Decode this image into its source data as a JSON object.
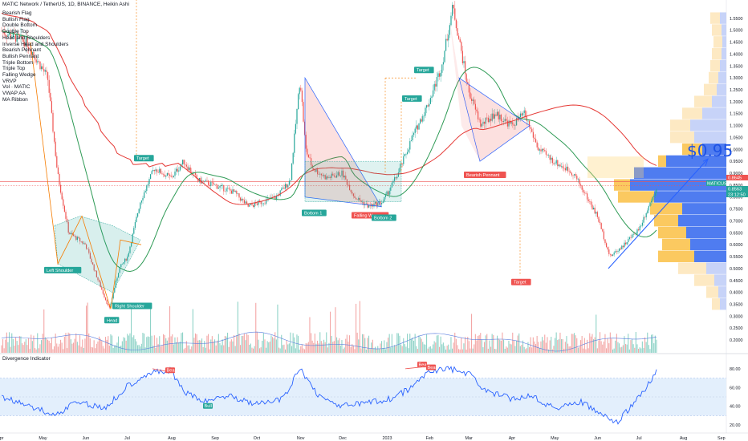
{
  "header": {
    "symbol_line": "MATIC Network / TetherUS, 1D, BINANCE, Heikin Ashi"
  },
  "legend": [
    "Bearish Flag",
    "Bullish Flag",
    "Double Bottom",
    "Double Top",
    "Head and Shoulders",
    "Inverse Head and Shoulders",
    "Bearish Pennant",
    "Bullish Pennant",
    "Triple Bottom",
    "Triple Top",
    "Falling Wedge",
    "VRVP",
    "Vol · MATIC",
    "VWAP AA",
    "MA Ribbon"
  ],
  "indicator": {
    "title": "Divergence Indicator"
  },
  "price_target": "$0.95",
  "colors": {
    "up": "#26a69a",
    "down": "#ef5350",
    "ma_green": "#2e9a55",
    "ma_red": "#e53935",
    "blue": "#2962ff",
    "orange": "#f57c00"
  },
  "chart_data": [
    {
      "type": "line",
      "name": "MATICUSDT price (Heikin Ashi)",
      "x": [
        "2022-04-01",
        "2022-04-20",
        "2022-05-05",
        "2022-05-12",
        "2022-05-20",
        "2022-06-01",
        "2022-06-10",
        "2022-06-18",
        "2022-06-25",
        "2022-07-01",
        "2022-07-10",
        "2022-07-20",
        "2022-08-01",
        "2022-08-10",
        "2022-08-20",
        "2022-09-01",
        "2022-09-15",
        "2022-09-25",
        "2022-10-05",
        "2022-10-15",
        "2022-10-25",
        "2022-11-01",
        "2022-11-05",
        "2022-11-10",
        "2022-11-20",
        "2022-12-01",
        "2022-12-10",
        "2022-12-20",
        "2022-12-30",
        "2023-01-10",
        "2023-01-20",
        "2023-02-01",
        "2023-02-10",
        "2023-02-18",
        "2023-03-01",
        "2023-03-10",
        "2023-03-20",
        "2023-04-01",
        "2023-04-10",
        "2023-04-20",
        "2023-05-01",
        "2023-05-15",
        "2023-06-01",
        "2023-06-10",
        "2023-06-20",
        "2023-07-01",
        "2023-07-14"
      ],
      "y": [
        1.5,
        1.45,
        1.3,
        0.9,
        0.65,
        0.6,
        0.45,
        0.33,
        0.5,
        0.55,
        0.78,
        0.92,
        0.88,
        0.95,
        0.87,
        0.85,
        0.82,
        0.76,
        0.78,
        0.8,
        0.87,
        1.3,
        1.0,
        0.92,
        0.88,
        0.9,
        0.8,
        0.76,
        0.78,
        0.9,
        1.05,
        1.2,
        1.35,
        1.6,
        1.25,
        1.1,
        1.15,
        1.1,
        1.15,
        1.0,
        0.95,
        0.9,
        0.72,
        0.55,
        0.6,
        0.67,
        0.85
      ],
      "axis": {
        "ylim": [
          0.18,
          1.6
        ],
        "yticks": [
          1.55,
          1.5,
          1.45,
          1.4,
          1.35,
          1.3,
          1.25,
          1.2,
          1.15,
          1.1,
          1.05,
          1.0,
          0.95,
          0.9,
          0.85,
          0.8,
          0.75,
          0.7,
          0.65,
          0.6,
          0.55,
          0.5,
          0.45,
          0.4,
          0.35,
          0.3,
          0.25,
          0.2
        ],
        "xticks": [
          "Apr",
          "May",
          "Jun",
          "Jul",
          "Aug",
          "Sep",
          "Oct",
          "Nov",
          "Dec",
          "2023",
          "Feb",
          "Mar",
          "Apr",
          "May",
          "Jun",
          "Jul",
          "Aug",
          "Sep"
        ]
      },
      "price_tags": [
        {
          "value": "0.8645",
          "color": "#ef5350"
        },
        {
          "value": "MATICUSDT",
          "color": "#26a69a"
        },
        {
          "value": "0.8563",
          "color": "#26a69a"
        },
        {
          "value": "23:12:50",
          "color": "#26a69a"
        }
      ],
      "pattern_labels": [
        {
          "text": "Left Shoulder",
          "color": "#26a69a"
        },
        {
          "text": "Head",
          "color": "#26a69a"
        },
        {
          "text": "Right Shoulder",
          "color": "#26a69a"
        },
        {
          "text": "Target",
          "color": "#26a69a"
        },
        {
          "text": "Bottom 1",
          "color": "#26a69a"
        },
        {
          "text": "Falling We...",
          "color": "#ef5350"
        },
        {
          "text": "Bottom 2",
          "color": "#26a69a"
        },
        {
          "text": "Target",
          "color": "#26a69a"
        },
        {
          "text": "Target",
          "color": "#26a69a"
        },
        {
          "text": "Bearish Pennant",
          "color": "#ef5350"
        },
        {
          "text": "Target",
          "color": "#ef5350"
        }
      ]
    },
    {
      "type": "line",
      "name": "Divergence Indicator",
      "axis": {
        "ylim": [
          15,
          85
        ],
        "yticks": [
          80.0,
          60.0,
          40.0,
          20.0
        ]
      },
      "x": [
        "2022-04-01",
        "2022-04-20",
        "2022-05-10",
        "2022-05-25",
        "2022-06-15",
        "2022-07-01",
        "2022-07-15",
        "2022-08-01",
        "2022-08-10",
        "2022-08-25",
        "2022-09-10",
        "2022-10-01",
        "2022-10-20",
        "2022-11-01",
        "2022-11-15",
        "2022-12-01",
        "2022-12-20",
        "2023-01-05",
        "2023-01-20",
        "2023-02-01",
        "2023-02-15",
        "2023-03-01",
        "2023-03-15",
        "2023-04-01",
        "2023-04-15",
        "2023-05-01",
        "2023-05-20",
        "2023-06-05",
        "2023-06-15",
        "2023-07-01",
        "2023-07-14"
      ],
      "y": [
        50,
        42,
        30,
        45,
        38,
        62,
        75,
        78,
        55,
        45,
        52,
        42,
        48,
        80,
        50,
        40,
        44,
        48,
        60,
        78,
        80,
        75,
        55,
        48,
        52,
        38,
        45,
        30,
        22,
        50,
        78
      ],
      "annotations": [
        {
          "text": "Bear",
          "color": "#ef5350"
        },
        {
          "text": "Bull",
          "color": "#26a69a"
        },
        {
          "text": "Bear",
          "color": "#ef5350"
        },
        {
          "text": "Bear",
          "color": "#ef5350"
        }
      ]
    }
  ]
}
